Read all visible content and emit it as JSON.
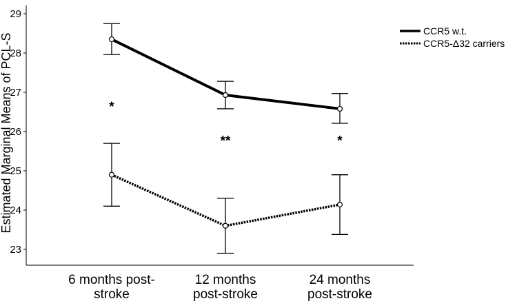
{
  "chart_data": {
    "type": "line",
    "title": "",
    "xlabel": "",
    "ylabel": "Estimated Marginal Means of PCL-S",
    "ylim": [
      22.7,
      29.3
    ],
    "yticks": [
      "23",
      "24",
      "25",
      "26",
      "27",
      "28",
      "29"
    ],
    "categories": [
      [
        "6 months post-",
        "stroke"
      ],
      [
        "12 months",
        "post-stroke"
      ],
      [
        "24 months",
        "post-stroke"
      ]
    ],
    "series": [
      {
        "name": "CCR5 w.t.",
        "style": "solid",
        "values": [
          28.35,
          26.93,
          26.58
        ],
        "error_low": [
          27.96,
          26.58,
          26.21
        ],
        "error_high": [
          28.75,
          27.28,
          26.97
        ]
      },
      {
        "name": "CCR5-Δ32 carriers",
        "style": "dotted",
        "values": [
          24.9,
          23.6,
          24.14
        ],
        "error_low": [
          24.1,
          22.9,
          23.38
        ],
        "error_high": [
          25.7,
          24.3,
          24.9
        ]
      }
    ],
    "significance": [
      {
        "label": "*",
        "y": 26.65
      },
      {
        "label": "**",
        "y": 25.78
      },
      {
        "label": "*",
        "y": 25.78
      }
    ],
    "legend": "top-right",
    "grid": false
  }
}
